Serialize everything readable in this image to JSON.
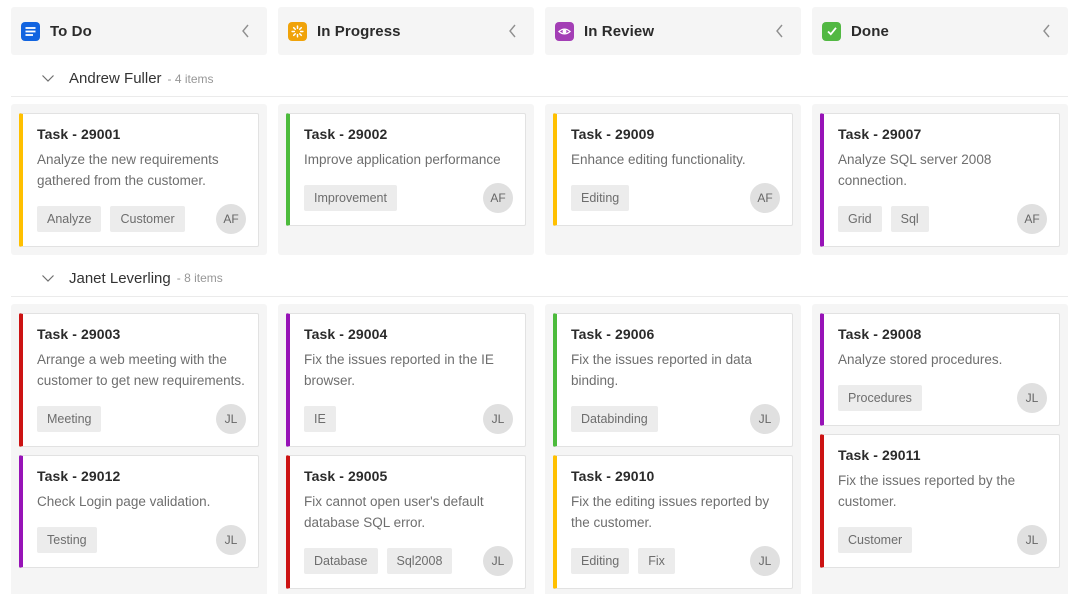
{
  "board": {
    "columns": [
      {
        "key": "todo",
        "label": "To Do",
        "icon": "list-icon",
        "icon_bg": "#1164E0",
        "collapse_icon": "chevron-left"
      },
      {
        "key": "inprogress",
        "label": "In Progress",
        "icon": "spinner-icon",
        "icon_bg": "#F0A30A",
        "collapse_icon": "chevron-left"
      },
      {
        "key": "review",
        "label": "In Review",
        "icon": "eye-icon",
        "icon_bg": "#A33EB5",
        "collapse_icon": "chevron-left"
      },
      {
        "key": "done",
        "label": "Done",
        "icon": "check-icon",
        "icon_bg": "#52B843",
        "collapse_icon": "chevron-left"
      }
    ],
    "accent_colors": {
      "yellow": "#FFC000",
      "green": "#4CBB3C",
      "purple": "#9713B7",
      "red": "#CC1313"
    },
    "swimlanes": [
      {
        "name": "Andrew Fuller",
        "count_text": "- 4 items",
        "cells": [
          [
            {
              "id_label": "Task - 29001",
              "summary": "Analyze the new requirements gathered from the customer.",
              "tags": [
                "Analyze",
                "Customer"
              ],
              "assignee_initials": "AF",
              "color": "#FFC000"
            }
          ],
          [
            {
              "id_label": "Task - 29002",
              "summary": "Improve application performance",
              "tags": [
                "Improvement"
              ],
              "assignee_initials": "AF",
              "color": "#4CBB3C"
            }
          ],
          [
            {
              "id_label": "Task - 29009",
              "summary": "Enhance editing functionality.",
              "tags": [
                "Editing"
              ],
              "assignee_initials": "AF",
              "color": "#FFC000"
            }
          ],
          [
            {
              "id_label": "Task - 29007",
              "summary": "Analyze SQL server 2008 connection.",
              "tags": [
                "Grid",
                "Sql"
              ],
              "assignee_initials": "AF",
              "color": "#9713B7"
            }
          ]
        ]
      },
      {
        "name": "Janet Leverling",
        "count_text": "- 8 items",
        "cells": [
          [
            {
              "id_label": "Task - 29003",
              "summary": "Arrange a web meeting with the customer to get new requirements.",
              "tags": [
                "Meeting"
              ],
              "assignee_initials": "JL",
              "color": "#CC1313"
            },
            {
              "id_label": "Task - 29012",
              "summary": "Check Login page validation.",
              "tags": [
                "Testing"
              ],
              "assignee_initials": "JL",
              "color": "#9713B7"
            }
          ],
          [
            {
              "id_label": "Task - 29004",
              "summary": "Fix the issues reported in the IE browser.",
              "tags": [
                "IE"
              ],
              "assignee_initials": "JL",
              "color": "#9713B7"
            },
            {
              "id_label": "Task - 29005",
              "summary": "Fix cannot open user's default database SQL error.",
              "tags": [
                "Database",
                "Sql2008"
              ],
              "assignee_initials": "JL",
              "color": "#CC1313"
            }
          ],
          [
            {
              "id_label": "Task - 29006",
              "summary": "Fix the issues reported in data binding.",
              "tags": [
                "Databinding"
              ],
              "assignee_initials": "JL",
              "color": "#4CBB3C"
            },
            {
              "id_label": "Task - 29010",
              "summary": "Fix the editing issues reported by the customer.",
              "tags": [
                "Editing",
                "Fix"
              ],
              "assignee_initials": "JL",
              "color": "#FFC000"
            }
          ],
          [
            {
              "id_label": "Task - 29008",
              "summary": "Analyze stored procedures.",
              "tags": [
                "Procedures"
              ],
              "assignee_initials": "JL",
              "color": "#9713B7"
            },
            {
              "id_label": "Task - 29011",
              "summary": "Fix the issues reported by the customer.",
              "tags": [
                "Customer"
              ],
              "assignee_initials": "JL",
              "color": "#CC1313"
            }
          ]
        ]
      }
    ]
  }
}
